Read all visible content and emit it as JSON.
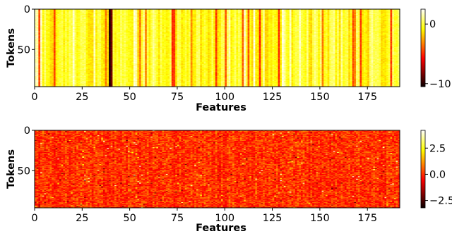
{
  "chart_data": [
    {
      "type": "heatmap",
      "title": "",
      "xlabel": "Features",
      "ylabel": "Tokens",
      "n_features": 192,
      "n_tokens": 96,
      "xticks": [
        0,
        25,
        50,
        75,
        100,
        125,
        150,
        175
      ],
      "yticks": [
        0,
        50
      ],
      "xlim": [
        0,
        192
      ],
      "ylim": [
        96,
        0
      ],
      "colormap": "hot",
      "colorbar": {
        "vmin": -10.5,
        "vmax": 2.5,
        "ticks": [
          {
            "value": 0,
            "label": "0"
          },
          {
            "value": -10,
            "label": "−10"
          }
        ]
      },
      "notable_columns": [
        {
          "feature": 39,
          "value": -10.5
        },
        {
          "feature": 40,
          "value": -9.0
        },
        {
          "feature": 31,
          "value": 1.5
        },
        {
          "feature": 72,
          "value": -5.0
        },
        {
          "feature": 112,
          "value": -4.0
        },
        {
          "feature": 20,
          "value": 1.8
        },
        {
          "feature": 168,
          "value": -3.0
        }
      ],
      "typical_value_range": [
        -3,
        1
      ]
    },
    {
      "type": "heatmap",
      "title": "",
      "xlabel": "Features",
      "ylabel": "Tokens",
      "n_features": 192,
      "n_tokens": 96,
      "xticks": [
        0,
        25,
        50,
        75,
        100,
        125,
        150,
        175
      ],
      "yticks": [
        0,
        50
      ],
      "xlim": [
        0,
        192
      ],
      "ylim": [
        96,
        0
      ],
      "colormap": "hot",
      "colorbar": {
        "vmin": -3.2,
        "vmax": 4.2,
        "ticks": [
          {
            "value": 2.5,
            "label": "2.5"
          },
          {
            "value": 0.0,
            "label": "0.0"
          },
          {
            "value": -2.5,
            "label": "−2.5"
          }
        ]
      },
      "typical_value_range": [
        -1,
        1
      ]
    }
  ]
}
